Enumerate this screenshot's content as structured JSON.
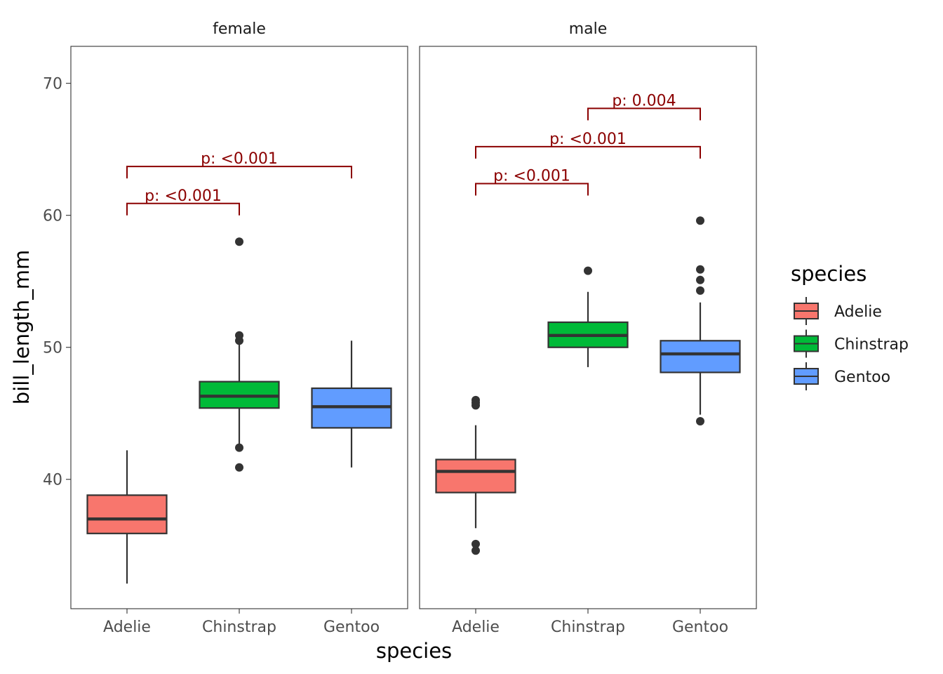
{
  "chart_data": {
    "type": "boxplot",
    "title": "",
    "xlabel": "species",
    "ylabel": "bill_length_mm",
    "ylim": [
      30.2,
      72.8
    ],
    "yticks": [
      40,
      50,
      60,
      70
    ],
    "categories": [
      "Adelie",
      "Chinstrap",
      "Gentoo"
    ],
    "legend": {
      "title": "species",
      "position": "right",
      "entries": [
        {
          "label": "Adelie",
          "color": "#F8766D"
        },
        {
          "label": "Chinstrap",
          "color": "#00BA38"
        },
        {
          "label": "Gentoo",
          "color": "#619CFF"
        }
      ]
    },
    "facets": [
      {
        "label": "female",
        "boxes": [
          {
            "category": "Adelie",
            "whisker_low": 32.1,
            "q1": 35.9,
            "median": 37.0,
            "q3": 38.8,
            "whisker_high": 42.2,
            "outliers": []
          },
          {
            "category": "Chinstrap",
            "whisker_low": 42.5,
            "q1": 45.4,
            "median": 46.3,
            "q3": 47.4,
            "whisker_high": 50.3,
            "outliers": [
              58.0,
              50.9,
              50.5,
              42.4,
              40.9
            ]
          },
          {
            "category": "Gentoo",
            "whisker_low": 40.9,
            "q1": 43.9,
            "median": 45.5,
            "q3": 46.9,
            "whisker_high": 50.5,
            "outliers": []
          }
        ],
        "comparisons": [
          {
            "from": "Adelie",
            "to": "Chinstrap",
            "label": "p: <0.001",
            "y": 60.9
          },
          {
            "from": "Adelie",
            "to": "Gentoo",
            "label": "p: <0.001",
            "y": 63.7
          }
        ]
      },
      {
        "label": "male",
        "boxes": [
          {
            "category": "Adelie",
            "whisker_low": 36.3,
            "q1": 39.0,
            "median": 40.6,
            "q3": 41.5,
            "whisker_high": 44.1,
            "outliers": [
              46.0,
              45.8,
              45.6,
              35.1,
              34.6
            ]
          },
          {
            "category": "Chinstrap",
            "whisker_low": 48.5,
            "q1": 50.0,
            "median": 50.9,
            "q3": 51.9,
            "whisker_high": 54.2,
            "outliers": [
              55.8
            ]
          },
          {
            "category": "Gentoo",
            "whisker_low": 44.9,
            "q1": 48.1,
            "median": 49.5,
            "q3": 50.5,
            "whisker_high": 53.4,
            "outliers": [
              59.6,
              55.9,
              55.1,
              54.3,
              44.4
            ]
          }
        ],
        "comparisons": [
          {
            "from": "Adelie",
            "to": "Chinstrap",
            "label": "p: <0.001",
            "y": 62.4
          },
          {
            "from": "Adelie",
            "to": "Gentoo",
            "label": "p: <0.001",
            "y": 65.2
          },
          {
            "from": "Chinstrap",
            "to": "Gentoo",
            "label": "p: 0.004",
            "y": 68.1
          }
        ]
      }
    ],
    "colors": {
      "annotation": "#8B0000",
      "box_outline": "#333333",
      "panel_border": "#333333",
      "tick": "#333333"
    }
  }
}
